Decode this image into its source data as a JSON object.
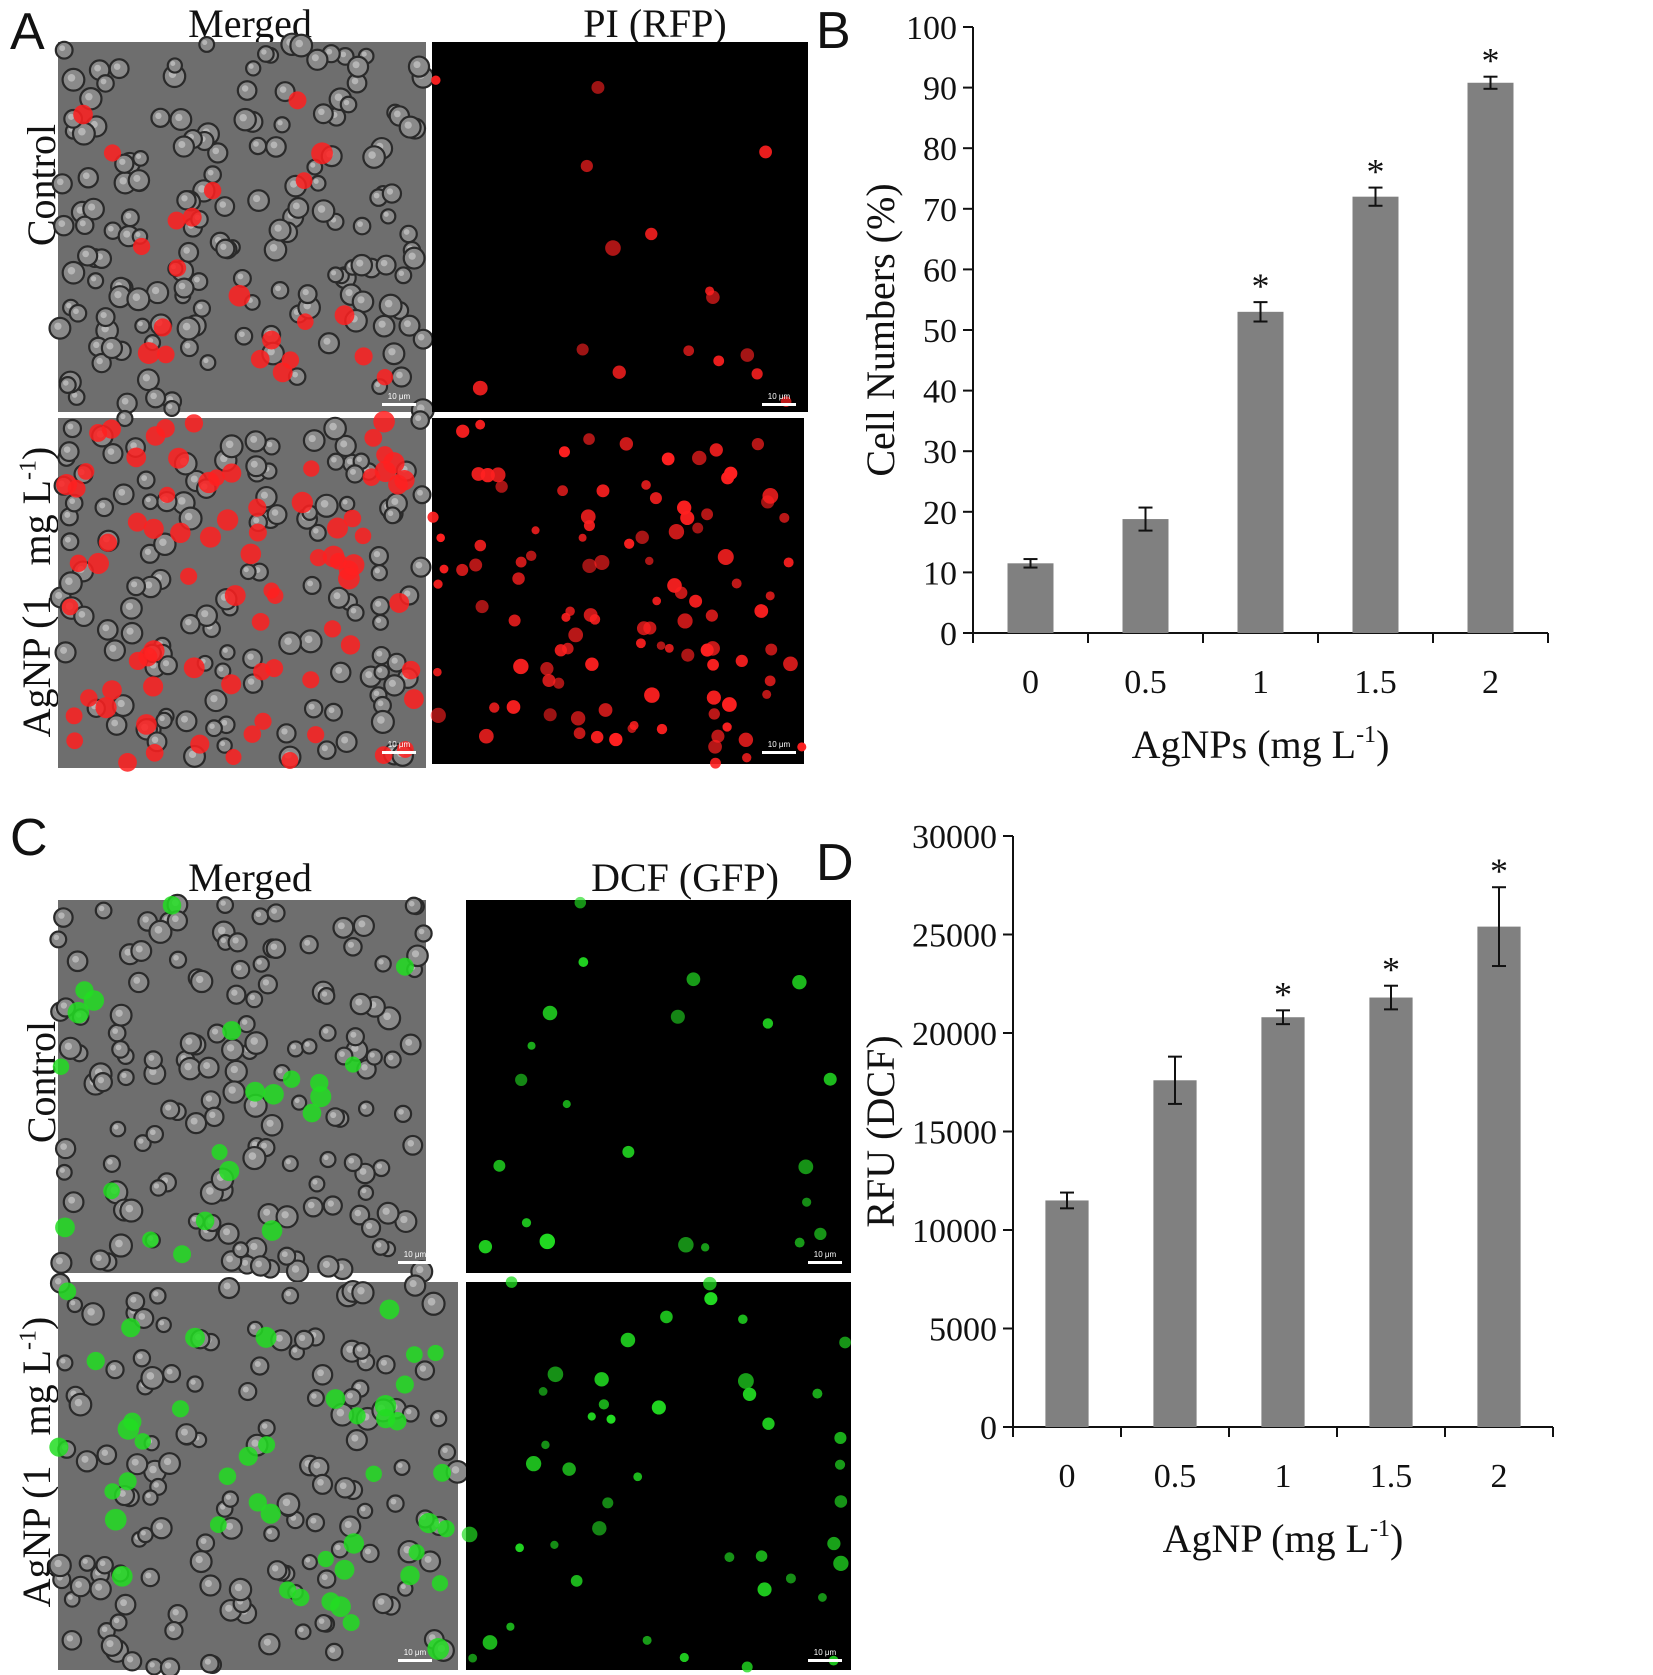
{
  "colors": {
    "bar": "#808080",
    "axis": "#111111",
    "merged_bg": "#6e6e6e",
    "fluor_bg": "#000000",
    "pi_red": "#ff2020",
    "dcf_green": "#22dd22"
  },
  "panelA": {
    "letter": "A",
    "col_titles": [
      "Merged",
      "PI (RFP)"
    ],
    "row_labels": [
      "Control",
      "AgNP (1   mg L-1)"
    ],
    "scale_label": "10 μm"
  },
  "panelC": {
    "letter": "C",
    "col_titles": [
      "Merged",
      "DCF (GFP)"
    ],
    "row_labels": [
      "Control",
      "AgNP (1   mg L-1)"
    ],
    "scale_label": "10 μm"
  },
  "chart_data": [
    {
      "panel": "B",
      "type": "bar",
      "categories": [
        "0",
        "0.5",
        "1",
        "1.5",
        "2"
      ],
      "values": [
        11.5,
        18.8,
        53.0,
        72.0,
        90.8
      ],
      "errors": [
        0.7,
        1.9,
        1.6,
        1.5,
        1.0
      ],
      "significance": [
        "",
        "",
        "*",
        "*",
        "*"
      ],
      "xlabel": "AgNPs (mg L-1)",
      "ylabel": "Cell Numbers (%)",
      "ylim": [
        0,
        100
      ],
      "yticks": [
        0,
        10,
        20,
        30,
        40,
        50,
        60,
        70,
        80,
        90,
        100
      ],
      "grid": false,
      "legend": "none"
    },
    {
      "panel": "D",
      "type": "bar",
      "categories": [
        "0",
        "0.5",
        "1",
        "1.5",
        "2"
      ],
      "values": [
        11500,
        17600,
        20800,
        21800,
        25400
      ],
      "errors": [
        400,
        1200,
        350,
        600,
        2000
      ],
      "significance": [
        "",
        "",
        "*",
        "*",
        "*"
      ],
      "xlabel": "AgNP (mg L-1)",
      "ylabel": "RFU (DCF)",
      "ylim": [
        0,
        30000
      ],
      "yticks": [
        0,
        5000,
        10000,
        15000,
        20000,
        25000,
        30000
      ],
      "grid": false,
      "legend": "none"
    }
  ]
}
